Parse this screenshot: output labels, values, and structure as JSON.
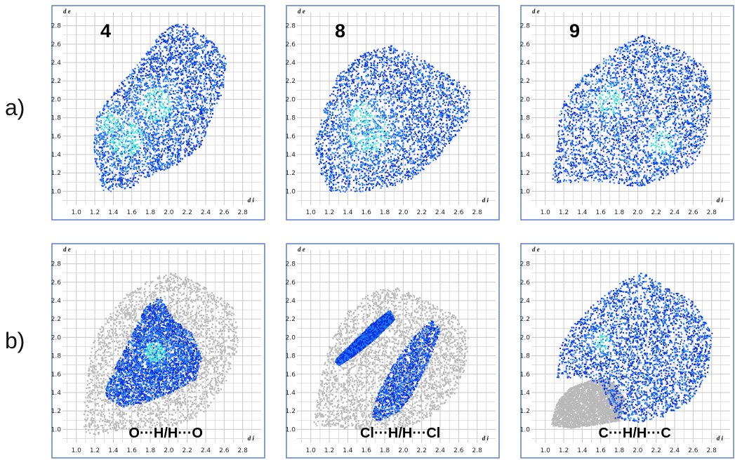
{
  "figure": {
    "row_labels": [
      "a)",
      "b)"
    ],
    "colors": {
      "panel_border": "#5a7fc8",
      "grid": "#c8c8c8",
      "points_low": "#0a2fd8",
      "points_mid": "#1e78ff",
      "points_high": "#3ee6d6",
      "background_points": "#b9b9b9"
    }
  },
  "chart_data": [
    {
      "type": "scatter",
      "panel": "a4",
      "label": "4",
      "xlabel": "d i",
      "ylabel": "d e",
      "xlim": [
        0.85,
        3.0
      ],
      "ylim": [
        0.85,
        2.95
      ],
      "xticks": [
        "1.0",
        "1.2",
        "1.4",
        "1.6",
        "1.8",
        "2.0",
        "2.2",
        "2.4",
        "2.6",
        "2.8"
      ],
      "yticks": [
        "1.0",
        "1.2",
        "1.4",
        "1.6",
        "1.8",
        "2.0",
        "2.2",
        "2.4",
        "2.6",
        "2.8"
      ],
      "hull": [
        [
          1.18,
          1.55
        ],
        [
          1.22,
          1.85
        ],
        [
          1.45,
          2.15
        ],
        [
          1.7,
          2.45
        ],
        [
          1.9,
          2.72
        ],
        [
          2.05,
          2.82
        ],
        [
          2.2,
          2.82
        ],
        [
          2.45,
          2.65
        ],
        [
          2.62,
          2.45
        ],
        [
          2.58,
          2.1
        ],
        [
          2.45,
          1.8
        ],
        [
          2.35,
          1.5
        ],
        [
          2.1,
          1.3
        ],
        [
          1.8,
          1.18
        ],
        [
          1.55,
          1.02
        ],
        [
          1.4,
          1.02
        ],
        [
          1.3,
          0.98
        ],
        [
          1.25,
          1.12
        ],
        [
          1.2,
          1.3
        ]
      ],
      "hotspots": [
        [
          1.52,
          1.58,
          0.9
        ],
        [
          1.85,
          1.95,
          0.8
        ],
        [
          1.35,
          1.75,
          0.5
        ]
      ]
    },
    {
      "type": "scatter",
      "panel": "a8",
      "label": "8",
      "xlabel": "d i",
      "ylabel": "d e",
      "xlim": [
        0.85,
        3.0
      ],
      "ylim": [
        0.85,
        2.95
      ],
      "xticks": [
        "1.0",
        "1.2",
        "1.4",
        "1.6",
        "1.8",
        "2.0",
        "2.2",
        "2.4",
        "2.6",
        "2.8"
      ],
      "yticks": [
        "1.0",
        "1.2",
        "1.4",
        "1.6",
        "1.8",
        "2.0",
        "2.2",
        "2.4",
        "2.6",
        "2.8"
      ],
      "hull": [
        [
          1.03,
          1.5
        ],
        [
          1.15,
          1.95
        ],
        [
          1.3,
          2.3
        ],
        [
          1.55,
          2.5
        ],
        [
          1.85,
          2.6
        ],
        [
          2.1,
          2.5
        ],
        [
          2.35,
          2.35
        ],
        [
          2.6,
          2.2
        ],
        [
          2.72,
          2.1
        ],
        [
          2.7,
          1.8
        ],
        [
          2.55,
          1.6
        ],
        [
          2.35,
          1.35
        ],
        [
          2.1,
          1.15
        ],
        [
          1.85,
          1.05
        ],
        [
          1.5,
          1.0
        ],
        [
          1.2,
          1.0
        ],
        [
          1.1,
          1.2
        ]
      ],
      "hotspots": [
        [
          1.62,
          1.65,
          1.0
        ],
        [
          1.55,
          1.85,
          0.6
        ]
      ]
    },
    {
      "type": "scatter",
      "panel": "a9",
      "label": "9",
      "xlabel": "d i",
      "ylabel": "d e",
      "xlim": [
        0.85,
        3.0
      ],
      "ylim": [
        0.85,
        2.95
      ],
      "xticks": [
        "1.0",
        "1.2",
        "1.4",
        "1.6",
        "1.8",
        "2.0",
        "2.2",
        "2.4",
        "2.6",
        "2.8"
      ],
      "yticks": [
        "1.0",
        "1.2",
        "1.4",
        "1.6",
        "1.8",
        "2.0",
        "2.2",
        "2.4",
        "2.6",
        "2.8"
      ],
      "hull": [
        [
          1.05,
          1.1
        ],
        [
          1.12,
          1.5
        ],
        [
          1.15,
          1.9
        ],
        [
          1.3,
          2.15
        ],
        [
          1.5,
          2.35
        ],
        [
          1.75,
          2.55
        ],
        [
          2.05,
          2.72
        ],
        [
          2.3,
          2.6
        ],
        [
          2.55,
          2.5
        ],
        [
          2.72,
          2.35
        ],
        [
          2.8,
          2.05
        ],
        [
          2.75,
          1.6
        ],
        [
          2.6,
          1.3
        ],
        [
          2.3,
          1.15
        ],
        [
          2.0,
          1.05
        ],
        [
          1.7,
          1.1
        ],
        [
          1.5,
          1.12
        ],
        [
          1.3,
          1.1
        ]
      ],
      "hotspots": [
        [
          1.7,
          2.0,
          0.7
        ],
        [
          2.25,
          1.55,
          0.6
        ]
      ]
    },
    {
      "type": "scatter",
      "panel": "bOH",
      "label": "O···H/H···O",
      "xlabel": "d i",
      "ylabel": "d e",
      "xlim": [
        0.85,
        3.0
      ],
      "ylim": [
        0.85,
        2.95
      ],
      "xticks": [
        "1.0",
        "1.2",
        "1.4",
        "1.6",
        "1.8",
        "2.0",
        "2.2",
        "2.4",
        "2.6",
        "2.8"
      ],
      "yticks": [
        "1.0",
        "1.2",
        "1.4",
        "1.6",
        "1.8",
        "2.0",
        "2.2",
        "2.4",
        "2.6",
        "2.8"
      ],
      "background_hull": [
        [
          1.05,
          0.98
        ],
        [
          1.1,
          1.5
        ],
        [
          1.15,
          1.9
        ],
        [
          1.3,
          2.2
        ],
        [
          1.5,
          2.45
        ],
        [
          1.8,
          2.65
        ],
        [
          2.05,
          2.72
        ],
        [
          2.3,
          2.6
        ],
        [
          2.55,
          2.45
        ],
        [
          2.72,
          2.3
        ],
        [
          2.75,
          1.9
        ],
        [
          2.6,
          1.5
        ],
        [
          2.4,
          1.2
        ],
        [
          2.1,
          1.05
        ],
        [
          1.6,
          1.0
        ],
        [
          1.2,
          0.95
        ]
      ],
      "hull": [
        [
          1.3,
          1.45
        ],
        [
          1.45,
          1.75
        ],
        [
          1.6,
          2.05
        ],
        [
          1.75,
          2.35
        ],
        [
          1.9,
          2.45
        ],
        [
          2.05,
          2.2
        ],
        [
          2.25,
          2.05
        ],
        [
          2.35,
          1.8
        ],
        [
          2.3,
          1.55
        ],
        [
          2.0,
          1.4
        ],
        [
          1.75,
          1.3
        ],
        [
          1.5,
          1.25
        ],
        [
          1.32,
          1.35
        ]
      ],
      "hotspots": [
        [
          1.85,
          1.85,
          0.5
        ]
      ]
    },
    {
      "type": "scatter",
      "panel": "bClH",
      "label": "Cl···H/H···Cl",
      "xlabel": "d i",
      "ylabel": "d e",
      "xlim": [
        0.85,
        3.0
      ],
      "ylim": [
        0.85,
        2.95
      ],
      "xticks": [
        "1.0",
        "1.2",
        "1.4",
        "1.6",
        "1.8",
        "2.0",
        "2.2",
        "2.4",
        "2.6",
        "2.8"
      ],
      "yticks": [
        "1.0",
        "1.2",
        "1.4",
        "1.6",
        "1.8",
        "2.0",
        "2.2",
        "2.4",
        "2.6",
        "2.8"
      ],
      "background_hull": [
        [
          1.02,
          1.05
        ],
        [
          1.08,
          1.5
        ],
        [
          1.2,
          1.95
        ],
        [
          1.4,
          2.3
        ],
        [
          1.65,
          2.52
        ],
        [
          1.95,
          2.55
        ],
        [
          2.25,
          2.4
        ],
        [
          2.55,
          2.25
        ],
        [
          2.7,
          2.05
        ],
        [
          2.68,
          1.7
        ],
        [
          2.55,
          1.4
        ],
        [
          2.3,
          1.15
        ],
        [
          2.0,
          1.02
        ],
        [
          1.5,
          1.0
        ]
      ],
      "hull": [
        [
          1.25,
          1.75
        ],
        [
          1.45,
          1.95
        ],
        [
          1.65,
          2.15
        ],
        [
          1.85,
          2.3
        ],
        [
          1.9,
          2.2
        ],
        [
          1.7,
          2.0
        ],
        [
          1.45,
          1.8
        ],
        [
          1.3,
          1.7
        ]
      ],
      "hull2": [
        [
          1.65,
          1.12
        ],
        [
          1.7,
          1.35
        ],
        [
          1.85,
          1.65
        ],
        [
          2.05,
          1.95
        ],
        [
          2.3,
          2.2
        ],
        [
          2.4,
          2.1
        ],
        [
          2.25,
          1.7
        ],
        [
          2.1,
          1.4
        ],
        [
          1.95,
          1.2
        ],
        [
          1.75,
          1.1
        ]
      ],
      "hotspots": []
    },
    {
      "type": "scatter",
      "panel": "bCH",
      "label": "C···H/H···C",
      "xlabel": "d i",
      "ylabel": "d e",
      "xlim": [
        0.85,
        3.0
      ],
      "ylim": [
        0.85,
        2.95
      ],
      "xticks": [
        "1.0",
        "1.2",
        "1.4",
        "1.6",
        "1.8",
        "2.0",
        "2.2",
        "2.4",
        "2.6",
        "2.8"
      ],
      "yticks": [
        "1.0",
        "1.2",
        "1.4",
        "1.6",
        "1.8",
        "2.0",
        "2.2",
        "2.4",
        "2.6",
        "2.8"
      ],
      "background_hull": [
        [
          1.05,
          1.05
        ],
        [
          1.12,
          1.3
        ],
        [
          1.25,
          1.45
        ],
        [
          1.5,
          1.55
        ],
        [
          1.7,
          1.55
        ],
        [
          1.85,
          1.35
        ],
        [
          1.8,
          1.1
        ],
        [
          1.5,
          1.05
        ],
        [
          1.25,
          1.02
        ]
      ],
      "hull": [
        [
          1.12,
          1.55
        ],
        [
          1.15,
          1.9
        ],
        [
          1.3,
          2.15
        ],
        [
          1.5,
          2.35
        ],
        [
          1.8,
          2.6
        ],
        [
          2.05,
          2.72
        ],
        [
          2.3,
          2.55
        ],
        [
          2.6,
          2.4
        ],
        [
          2.8,
          2.05
        ],
        [
          2.75,
          1.6
        ],
        [
          2.55,
          1.3
        ],
        [
          2.3,
          1.15
        ],
        [
          2.0,
          1.08
        ],
        [
          1.75,
          1.12
        ],
        [
          1.6,
          1.5
        ],
        [
          1.35,
          1.58
        ]
      ],
      "hotspots": [
        [
          1.6,
          1.95,
          0.4
        ]
      ]
    }
  ]
}
